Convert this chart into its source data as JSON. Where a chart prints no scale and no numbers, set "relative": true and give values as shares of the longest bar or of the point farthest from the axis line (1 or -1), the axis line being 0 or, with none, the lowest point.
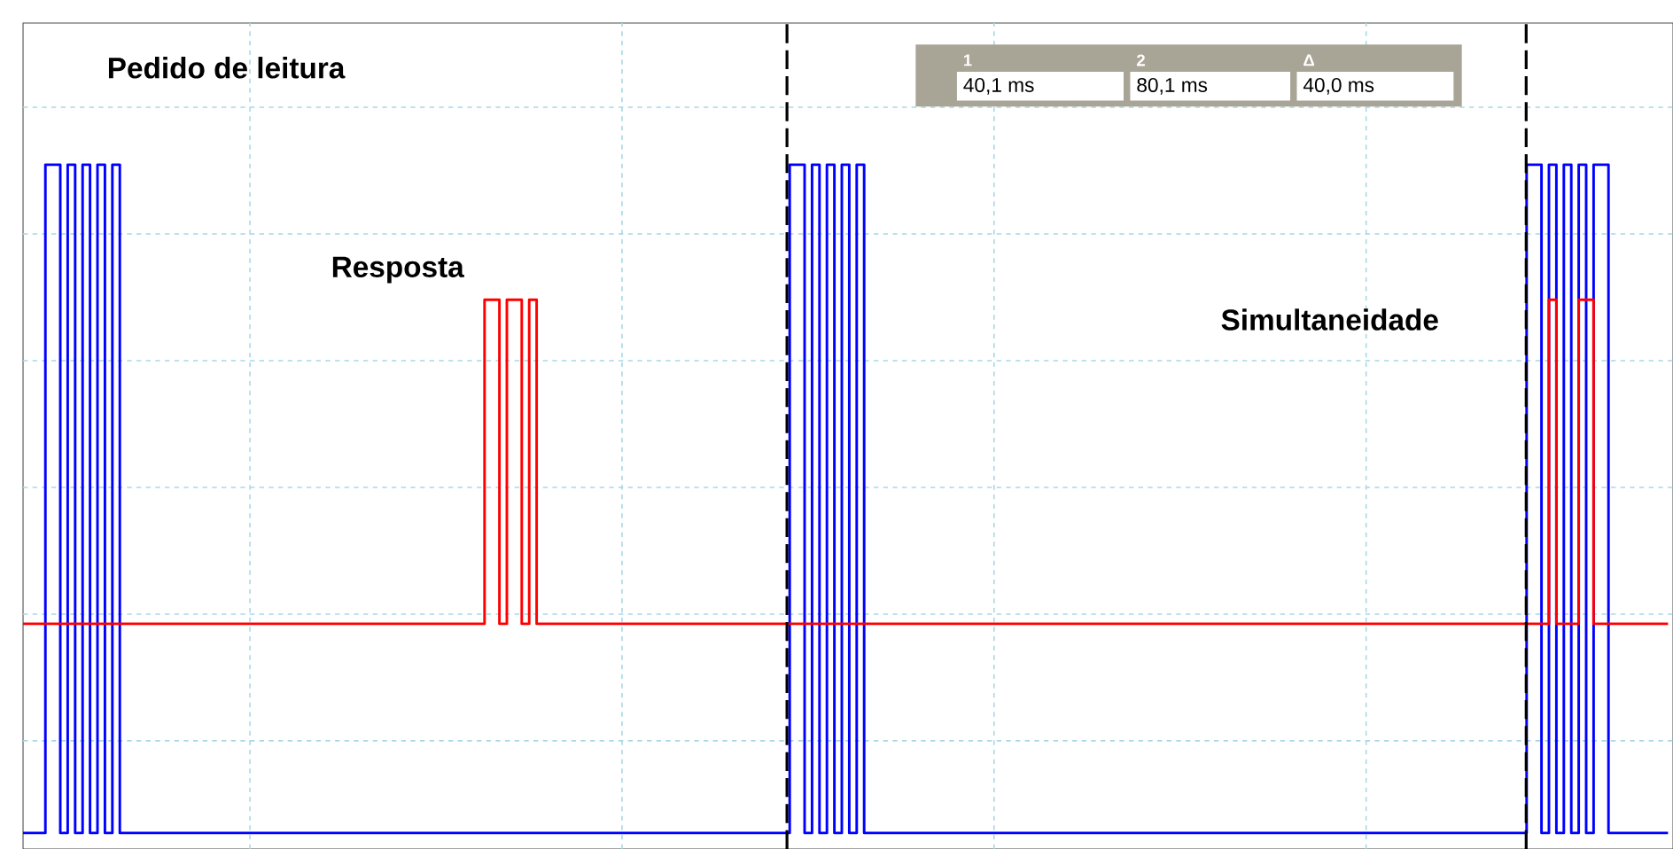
{
  "chart_data": {
    "type": "step",
    "relative": true,
    "grid": true,
    "categories": [
      null,
      null,
      null,
      null,
      null,
      null,
      null,
      null,
      null,
      null,
      null,
      null,
      null,
      null,
      null,
      null,
      null,
      null,
      null,
      null,
      null,
      null,
      null,
      null,
      null,
      null,
      null,
      null,
      null,
      null,
      null,
      null,
      null,
      null,
      null,
      null,
      null,
      null,
      null,
      null,
      null,
      null,
      null,
      null,
      null,
      null,
      null,
      null,
      null,
      null,
      null,
      null,
      null,
      null,
      null,
      null,
      null,
      null,
      null,
      null,
      null,
      null,
      null,
      null,
      null,
      null,
      null,
      null,
      null,
      null,
      null,
      null,
      null,
      null,
      null,
      null,
      null,
      null,
      null,
      null,
      null,
      null,
      null,
      null,
      null,
      null,
      null,
      null,
      null,
      null,
      null,
      null,
      null,
      null,
      null,
      null,
      null,
      null,
      null,
      null,
      null,
      null,
      null,
      null,
      null,
      null,
      null,
      null,
      null,
      null,
      null,
      null,
      null,
      null,
      null,
      null,
      null,
      null,
      null,
      null,
      null,
      null,
      null,
      null,
      null,
      null,
      null,
      null,
      null,
      null,
      null,
      null,
      null,
      null,
      null,
      null,
      null,
      null,
      null,
      null,
      null,
      null,
      null,
      null,
      null,
      null,
      null,
      null,
      null,
      null,
      null,
      null,
      null,
      null,
      null,
      null,
      null,
      null,
      null,
      null,
      null,
      null,
      null,
      null,
      null,
      null,
      null,
      null,
      null,
      null,
      null,
      null,
      null,
      null,
      null,
      null,
      null,
      null,
      null,
      null,
      null,
      null,
      null,
      null,
      null,
      null,
      null,
      null,
      null,
      null,
      null,
      null,
      null,
      null,
      null,
      null,
      null,
      null,
      null,
      null,
      null,
      null,
      null,
      null,
      null,
      null,
      null,
      null,
      null,
      null,
      null,
      null,
      null,
      null,
      null,
      null,
      null,
      null,
      null,
      null,
      null,
      null
    ],
    "series": [
      {
        "color": "#0000ff",
        "values": [
          0,
          0,
          0,
          1,
          1,
          0,
          1,
          0,
          1,
          0,
          1,
          0,
          1,
          0,
          0,
          0,
          0,
          0,
          0,
          0,
          0,
          0,
          0,
          0,
          0,
          0,
          0,
          0,
          0,
          0,
          0,
          0,
          0,
          0,
          0,
          0,
          0,
          0,
          0,
          0,
          0,
          0,
          0,
          0,
          0,
          0,
          0,
          0,
          0,
          0,
          0,
          0,
          0,
          0,
          0,
          0,
          0,
          0,
          0,
          0,
          0,
          0,
          0,
          0,
          0,
          0,
          0,
          0,
          0,
          0,
          0,
          0,
          0,
          0,
          0,
          0,
          0,
          0,
          0,
          0,
          0,
          0,
          0,
          0,
          0,
          0,
          0,
          0,
          0,
          0,
          0,
          0,
          0,
          0,
          0,
          0,
          0,
          0,
          0,
          0,
          0,
          0,
          0,
          1,
          1,
          0,
          1,
          0,
          1,
          0,
          1,
          0,
          1,
          0,
          0,
          0,
          0,
          0,
          0,
          0,
          0,
          0,
          0,
          0,
          0,
          0,
          0,
          0,
          0,
          0,
          0,
          0,
          0,
          0,
          0,
          0,
          0,
          0,
          0,
          0,
          0,
          0,
          0,
          0,
          0,
          0,
          0,
          0,
          0,
          0,
          0,
          0,
          0,
          0,
          0,
          0,
          0,
          0,
          0,
          0,
          0,
          0,
          0,
          0,
          0,
          0,
          0,
          0,
          0,
          0,
          0,
          0,
          0,
          0,
          0,
          0,
          0,
          0,
          0,
          0,
          0,
          0,
          0,
          0,
          0,
          0,
          0,
          0,
          0,
          0,
          0,
          0,
          0,
          0,
          0,
          0,
          0,
          0,
          0,
          0,
          0,
          0,
          1,
          1,
          0,
          1,
          0,
          1,
          0,
          1,
          0,
          1,
          1,
          0,
          0,
          0,
          0,
          0,
          0,
          0,
          0,
          0
        ]
      },
      {
        "color": "#ff0000",
        "values": [
          0.313,
          0.313,
          0.313,
          0.313,
          0.313,
          0.313,
          0.313,
          0.313,
          0.313,
          0.313,
          0.313,
          0.313,
          0.313,
          0.313,
          0.313,
          0.313,
          0.313,
          0.313,
          0.313,
          0.313,
          0.313,
          0.313,
          0.313,
          0.313,
          0.313,
          0.313,
          0.313,
          0.313,
          0.313,
          0.313,
          0.313,
          0.313,
          0.313,
          0.313,
          0.313,
          0.313,
          0.313,
          0.313,
          0.313,
          0.313,
          0.313,
          0.313,
          0.313,
          0.313,
          0.313,
          0.313,
          0.313,
          0.313,
          0.313,
          0.313,
          0.313,
          0.313,
          0.313,
          0.313,
          0.313,
          0.313,
          0.313,
          0.313,
          0.313,
          0.313,
          0.313,
          0.313,
          0.798,
          0.798,
          0.313,
          0.798,
          0.798,
          0.313,
          0.798,
          0.313,
          0.313,
          0.313,
          0.313,
          0.313,
          0.313,
          0.313,
          0.313,
          0.313,
          0.313,
          0.313,
          0.313,
          0.313,
          0.313,
          0.313,
          0.313,
          0.313,
          0.313,
          0.313,
          0.313,
          0.313,
          0.313,
          0.313,
          0.313,
          0.313,
          0.313,
          0.313,
          0.313,
          0.313,
          0.313,
          0.313,
          0.313,
          0.313,
          0.313,
          0.313,
          0.313,
          0.313,
          0.313,
          0.313,
          0.313,
          0.313,
          0.313,
          0.313,
          0.313,
          0.313,
          0.313,
          0.313,
          0.313,
          0.313,
          0.313,
          0.313,
          0.313,
          0.313,
          0.313,
          0.313,
          0.313,
          0.313,
          0.313,
          0.313,
          0.313,
          0.313,
          0.313,
          0.313,
          0.313,
          0.313,
          0.313,
          0.313,
          0.313,
          0.313,
          0.313,
          0.313,
          0.313,
          0.313,
          0.313,
          0.313,
          0.313,
          0.313,
          0.313,
          0.313,
          0.313,
          0.313,
          0.313,
          0.313,
          0.313,
          0.313,
          0.313,
          0.313,
          0.313,
          0.313,
          0.313,
          0.313,
          0.313,
          0.313,
          0.313,
          0.313,
          0.313,
          0.313,
          0.313,
          0.313,
          0.313,
          0.313,
          0.313,
          0.313,
          0.313,
          0.313,
          0.313,
          0.313,
          0.313,
          0.313,
          0.313,
          0.313,
          0.313,
          0.313,
          0.313,
          0.313,
          0.313,
          0.313,
          0.313,
          0.313,
          0.313,
          0.313,
          0.313,
          0.313,
          0.313,
          0.313,
          0.313,
          0.313,
          0.313,
          0.313,
          0.313,
          0.313,
          0.313,
          0.313,
          0.313,
          0.313,
          0.313,
          0.798,
          0.313,
          0.313,
          0.313,
          0.798,
          0.798,
          0.313,
          0.313,
          0.313,
          0.313,
          0.313,
          0.313,
          0.313,
          0.313,
          0.313,
          0.313,
          0.313
        ]
      }
    ],
    "annotations": [
      "1",
      "2",
      "Δ",
      "40,1 ms",
      "80,1 ms",
      "40,0 ms",
      "Pedido de leitura",
      "Resposta",
      "Simultaneidade"
    ]
  }
}
